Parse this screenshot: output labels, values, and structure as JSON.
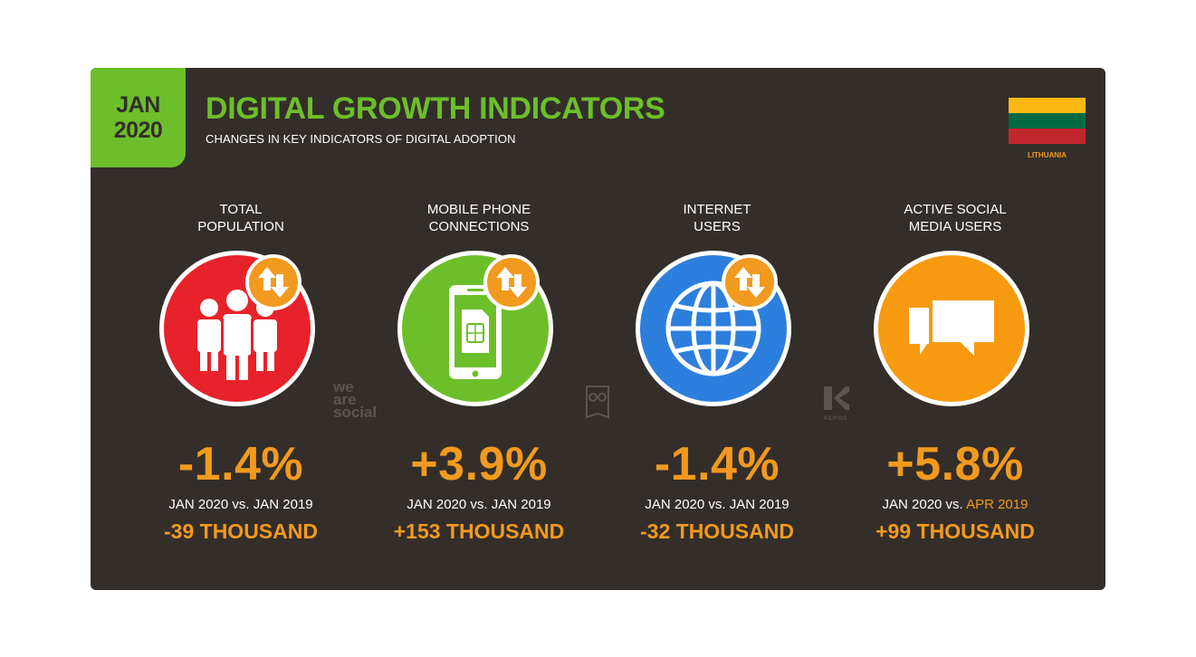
{
  "header": {
    "date_line1": "JAN",
    "date_line2": "2020",
    "title": "DIGITAL GROWTH INDICATORS",
    "subtitle": "CHANGES IN KEY INDICATORS OF DIGITAL ADOPTION"
  },
  "country": {
    "name": "LITHUANIA",
    "flag_colors": [
      "#fdb913",
      "#006a44",
      "#c1272d"
    ]
  },
  "colors": {
    "background": "#342e2a",
    "accent_green": "#6cbf2a",
    "accent_orange": "#f29a1f",
    "population_red": "#e8222a",
    "mobile_green": "#6cbf2a",
    "internet_blue": "#2d7fde",
    "social_orange": "#f89a10"
  },
  "indicators": [
    {
      "label": "TOTAL\nPOPULATION",
      "icon": "people-icon",
      "change_pct": "-1.4%",
      "period_prefix": "JAN 2020 vs. ",
      "period_ref": "JAN 2019",
      "change_abs": "-39 THOUSAND"
    },
    {
      "label": "MOBILE PHONE\nCONNECTIONS",
      "icon": "mobile-phone-icon",
      "change_pct": "+3.9%",
      "period_prefix": "JAN 2020 vs. ",
      "period_ref": "JAN 2019",
      "change_abs": "+153 THOUSAND"
    },
    {
      "label": "INTERNET\nUSERS",
      "icon": "globe-icon",
      "change_pct": "-1.4%",
      "period_prefix": "JAN 2020 vs. ",
      "period_ref": "JAN 2019",
      "change_abs": "-32 THOUSAND"
    },
    {
      "label": "ACTIVE SOCIAL\nMEDIA USERS",
      "icon": "chat-bubbles-icon",
      "change_pct": "+5.8%",
      "period_prefix": "JAN 2020 vs. ",
      "period_ref": "APR 2019",
      "change_abs": "+99 THOUSAND"
    }
  ],
  "brands": {
    "we_are_social": [
      "we",
      "are",
      "social"
    ],
    "kepios": "KEPIOS"
  }
}
